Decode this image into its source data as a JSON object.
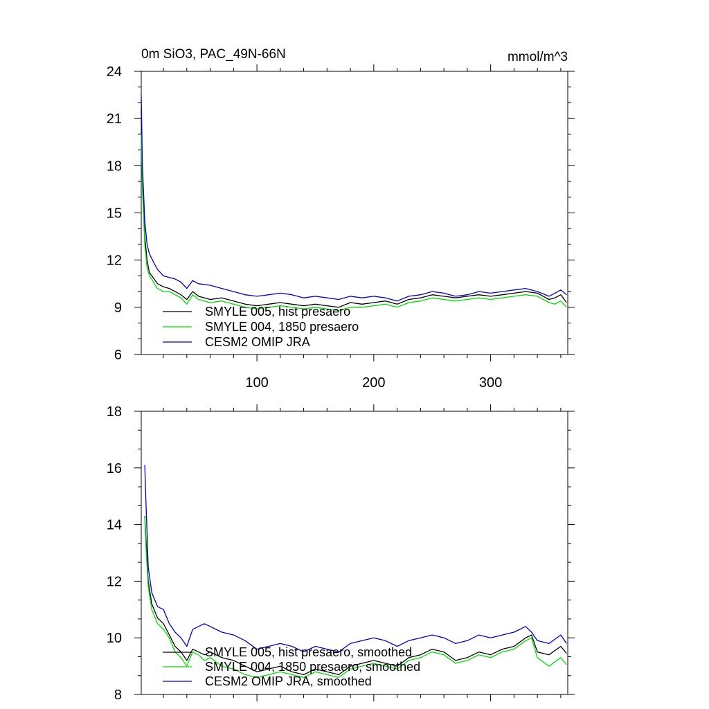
{
  "chart_data": [
    {
      "type": "line",
      "title": "0m SiO3, PAC_49N-66N",
      "units": "mmol/m^3",
      "xlim": [
        1,
        366
      ],
      "ylim": [
        6,
        24
      ],
      "x_ticks": [
        100,
        200,
        300
      ],
      "y_ticks": [
        6,
        9,
        12,
        15,
        18,
        21,
        24
      ],
      "legend_position": "bottom-left",
      "series": [
        {
          "name": "SMYLE 005, hist presaero",
          "color": "#000000",
          "x": [
            1,
            2,
            4,
            6,
            8,
            10,
            12,
            15,
            20,
            25,
            30,
            35,
            40,
            45,
            50,
            60,
            70,
            80,
            90,
            100,
            110,
            120,
            130,
            140,
            150,
            160,
            170,
            180,
            190,
            200,
            210,
            220,
            230,
            240,
            250,
            260,
            270,
            280,
            290,
            300,
            310,
            320,
            330,
            340,
            350,
            355,
            360,
            365
          ],
          "y": [
            21.5,
            17.0,
            13.5,
            12.0,
            11.2,
            11.0,
            10.8,
            10.5,
            10.3,
            10.2,
            10.0,
            9.8,
            9.5,
            10.0,
            9.7,
            9.5,
            9.6,
            9.4,
            9.2,
            9.1,
            9.2,
            9.3,
            9.2,
            9.1,
            9.2,
            9.1,
            9.0,
            9.3,
            9.2,
            9.3,
            9.4,
            9.2,
            9.5,
            9.6,
            9.8,
            9.7,
            9.6,
            9.7,
            9.8,
            9.7,
            9.8,
            9.9,
            10.0,
            9.9,
            9.5,
            9.6,
            9.8,
            9.3
          ]
        },
        {
          "name": "SMYLE 004, 1850 presaero",
          "color": "#00dd00",
          "x": [
            1,
            2,
            4,
            6,
            8,
            10,
            12,
            15,
            20,
            25,
            30,
            35,
            40,
            45,
            50,
            60,
            70,
            80,
            90,
            100,
            110,
            120,
            130,
            140,
            150,
            160,
            170,
            180,
            190,
            200,
            210,
            220,
            230,
            240,
            250,
            260,
            270,
            280,
            290,
            300,
            310,
            320,
            330,
            340,
            350,
            355,
            360,
            365
          ],
          "y": [
            20.0,
            16.5,
            13.0,
            11.5,
            11.0,
            10.8,
            10.5,
            10.2,
            10.0,
            10.0,
            9.8,
            9.6,
            9.2,
            9.8,
            9.5,
            9.3,
            9.4,
            9.2,
            9.0,
            8.9,
            9.0,
            9.1,
            9.0,
            8.9,
            9.0,
            8.9,
            8.8,
            9.0,
            9.0,
            9.1,
            9.2,
            9.0,
            9.3,
            9.4,
            9.6,
            9.5,
            9.4,
            9.5,
            9.6,
            9.5,
            9.6,
            9.7,
            9.8,
            9.7,
            9.3,
            9.2,
            9.4,
            9.0
          ]
        },
        {
          "name": "CESM2 OMIP JRA",
          "color": "#0000cc",
          "x": [
            1,
            2,
            4,
            6,
            8,
            10,
            12,
            15,
            20,
            25,
            30,
            35,
            40,
            45,
            50,
            60,
            70,
            80,
            90,
            100,
            110,
            120,
            130,
            140,
            150,
            160,
            170,
            180,
            190,
            200,
            210,
            220,
            230,
            240,
            250,
            260,
            270,
            280,
            290,
            300,
            310,
            320,
            330,
            340,
            350,
            355,
            360,
            365
          ],
          "y": [
            22.5,
            18.0,
            14.5,
            13.0,
            12.4,
            12.1,
            11.8,
            11.4,
            11.0,
            10.9,
            10.8,
            10.6,
            10.2,
            10.7,
            10.5,
            10.4,
            10.2,
            10.0,
            9.8,
            9.7,
            9.8,
            9.9,
            9.8,
            9.6,
            9.7,
            9.6,
            9.5,
            9.7,
            9.6,
            9.7,
            9.6,
            9.4,
            9.7,
            9.8,
            10.0,
            9.9,
            9.7,
            9.8,
            10.0,
            9.9,
            10.0,
            10.1,
            10.2,
            10.0,
            9.7,
            9.9,
            10.1,
            9.8
          ]
        }
      ]
    },
    {
      "type": "line",
      "title": "",
      "units": "",
      "xlim": [
        1,
        366
      ],
      "ylim": [
        8,
        18
      ],
      "x_ticks": [
        100,
        200,
        300
      ],
      "y_ticks": [
        8,
        10,
        12,
        14,
        16,
        18
      ],
      "legend_position": "bottom-left",
      "series": [
        {
          "name": "SMYLE 005, hist presaero, smoothed",
          "color": "#000000",
          "x": [
            4,
            5,
            7,
            10,
            15,
            20,
            25,
            30,
            35,
            40,
            45,
            50,
            55,
            60,
            70,
            80,
            90,
            100,
            110,
            120,
            130,
            140,
            150,
            160,
            170,
            180,
            190,
            200,
            210,
            220,
            230,
            240,
            250,
            260,
            270,
            280,
            290,
            300,
            310,
            320,
            330,
            335,
            340,
            350,
            360,
            365
          ],
          "y": [
            14.3,
            13.5,
            12.0,
            11.2,
            10.7,
            10.5,
            10.1,
            9.7,
            9.5,
            9.2,
            9.6,
            9.5,
            9.4,
            9.5,
            9.3,
            9.2,
            9.0,
            8.8,
            8.9,
            9.0,
            8.8,
            8.7,
            8.9,
            8.8,
            8.7,
            9.0,
            9.1,
            9.2,
            9.1,
            9.0,
            9.3,
            9.4,
            9.6,
            9.5,
            9.2,
            9.3,
            9.5,
            9.4,
            9.6,
            9.7,
            10.0,
            10.1,
            9.5,
            9.4,
            9.7,
            9.45
          ]
        },
        {
          "name": "SMYLE 004, 1850 presaero, smoothed",
          "color": "#00dd00",
          "x": [
            4,
            5,
            7,
            10,
            15,
            20,
            25,
            30,
            35,
            40,
            45,
            50,
            55,
            60,
            70,
            80,
            90,
            100,
            110,
            120,
            130,
            140,
            150,
            160,
            170,
            180,
            190,
            200,
            210,
            220,
            230,
            240,
            250,
            260,
            270,
            280,
            290,
            300,
            310,
            320,
            330,
            335,
            340,
            350,
            360,
            365
          ],
          "y": [
            14.25,
            13.2,
            11.8,
            11.0,
            10.5,
            10.3,
            10.0,
            9.5,
            9.3,
            9.0,
            9.5,
            9.4,
            9.2,
            9.3,
            9.0,
            8.9,
            8.7,
            8.6,
            8.7,
            8.8,
            8.7,
            8.6,
            8.8,
            8.7,
            8.6,
            8.9,
            9.0,
            9.1,
            9.0,
            8.9,
            9.2,
            9.3,
            9.5,
            9.4,
            9.1,
            9.2,
            9.4,
            9.3,
            9.5,
            9.6,
            9.9,
            10.0,
            9.3,
            9.0,
            9.3,
            9.05
          ]
        },
        {
          "name": "CESM2 OMIP JRA, smoothed",
          "color": "#0000cc",
          "x": [
            4,
            5,
            7,
            10,
            15,
            20,
            25,
            30,
            35,
            40,
            45,
            50,
            55,
            60,
            70,
            80,
            90,
            100,
            110,
            120,
            130,
            140,
            150,
            160,
            170,
            180,
            190,
            200,
            210,
            220,
            230,
            240,
            250,
            260,
            270,
            280,
            290,
            300,
            310,
            320,
            330,
            335,
            340,
            350,
            360,
            365
          ],
          "y": [
            16.1,
            14.8,
            12.5,
            11.6,
            11.1,
            11.0,
            10.5,
            10.2,
            10.0,
            9.7,
            10.3,
            10.4,
            10.5,
            10.4,
            10.2,
            10.1,
            9.9,
            9.6,
            9.7,
            9.8,
            9.7,
            9.5,
            9.7,
            9.6,
            9.5,
            9.8,
            9.9,
            10.0,
            9.9,
            9.7,
            9.9,
            10.0,
            10.1,
            10.0,
            9.8,
            9.9,
            10.1,
            10.0,
            10.1,
            10.2,
            10.4,
            10.2,
            9.9,
            9.8,
            10.1,
            9.8
          ]
        }
      ]
    }
  ]
}
